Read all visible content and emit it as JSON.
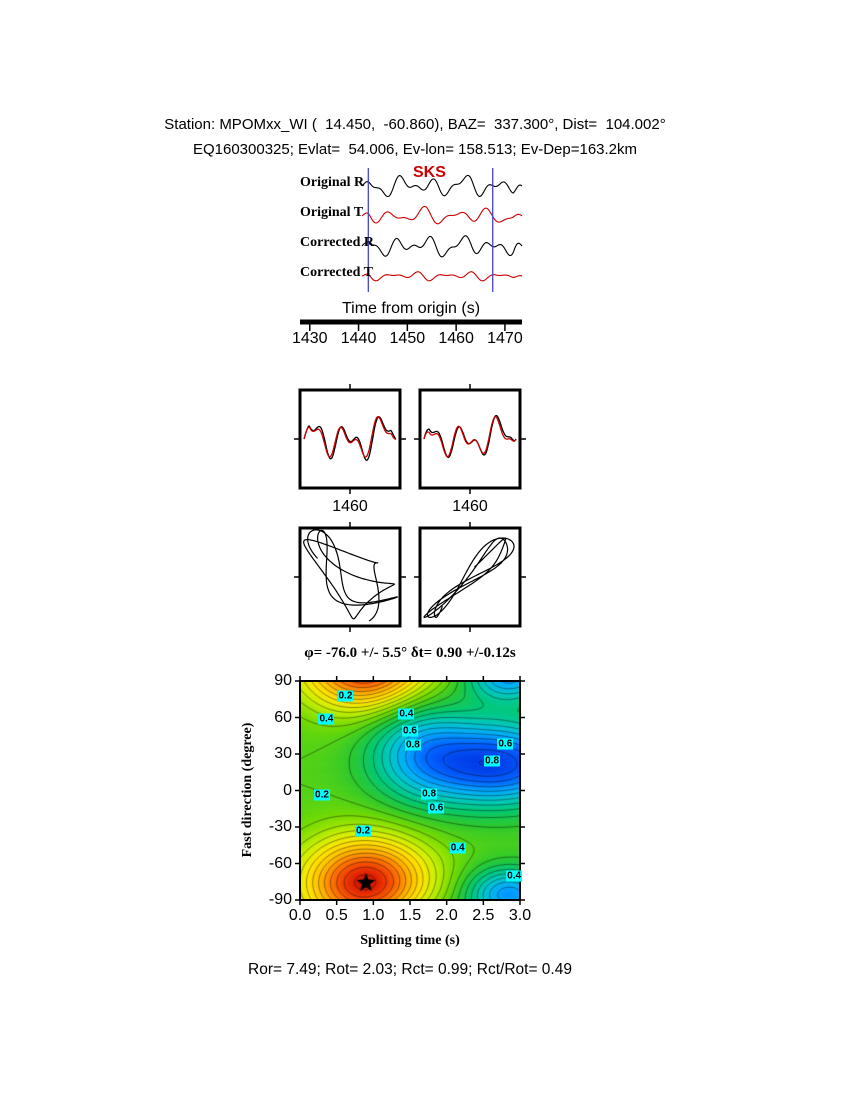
{
  "header": {
    "line1": "Station: MPOMxx_WI (  14.450,  -60.860), BAZ=  337.300°, Dist=  104.002°",
    "line2": "EQ160300325; Evlat=  54.006, Ev-lon= 158.513; Ev-Dep=163.2km"
  },
  "footer": {
    "text": "Ror= 7.49; Rot= 2.03; Rct= 0.99; Rct/Rot= 0.49"
  },
  "colors": {
    "radial_trace": "#000000",
    "transverse_trace": "#cc0000",
    "window_line": "#4444cc",
    "phase_label": "#cc0000",
    "contour_label_bg": "#00ffff",
    "star": "#000000"
  },
  "chart_data": [
    {
      "type": "line",
      "id": "waveform-traces",
      "xlabel": "Time from origin (s)",
      "xlim": [
        1428,
        1473.5
      ],
      "xticks": [
        "1430",
        "1440",
        "1450",
        "1460",
        "1470"
      ],
      "xtick_values": [
        1430,
        1440,
        1450,
        1460,
        1470
      ],
      "window_seconds": [
        1442,
        1467.5
      ],
      "phase_label": "SKS",
      "traces": [
        {
          "label": "Original R",
          "color": "#000000",
          "components": [
            [
              6,
              5,
              0.3
            ],
            [
              4,
              9,
              1.2
            ],
            [
              3,
              3,
              2.1
            ]
          ]
        },
        {
          "label": "Original T",
          "color": "#cc0000",
          "components": [
            [
              5,
              5,
              2.0
            ],
            [
              3,
              8,
              0.5
            ],
            [
              2,
              3,
              1.0
            ]
          ]
        },
        {
          "label": "Corrected R",
          "color": "#000000",
          "components": [
            [
              6,
              5,
              0.9
            ],
            [
              4,
              9,
              2.2
            ],
            [
              3,
              3,
              1.4
            ]
          ]
        },
        {
          "label": "Corrected T",
          "color": "#cc0000",
          "components": [
            [
              2.5,
              6,
              1.1
            ],
            [
              1.6,
              9,
              0.3
            ],
            [
              1.2,
              3,
              2.6
            ]
          ]
        }
      ]
    },
    {
      "type": "line",
      "id": "window-comparison",
      "panels": [
        {
          "xtick": "1460",
          "series": [
            {
              "name": "fast",
              "color": "#000000",
              "components": [
                [
                  14,
                  2.5,
                  0.5
                ],
                [
                  9,
                  5,
                  1.8
                ],
                [
                  6,
                  1.5,
                  0.0
                ]
              ]
            },
            {
              "name": "slow",
              "color": "#cc0000",
              "components": [
                [
                  13,
                  2.5,
                  0.78
                ],
                [
                  8,
                  5,
                  2.05
                ],
                [
                  6,
                  1.5,
                  0.22
                ]
              ]
            }
          ]
        },
        {
          "xtick": "1460",
          "series": [
            {
              "name": "fast",
              "color": "#000000",
              "components": [
                [
                  13,
                  2.5,
                  1.15
                ],
                [
                  8,
                  5,
                  2.5
                ],
                [
                  6,
                  1.5,
                  0.6
                ]
              ]
            },
            {
              "name": "slow",
              "color": "#cc0000",
              "components": [
                [
                  12,
                  2.5,
                  1.35
                ],
                [
                  8,
                  5,
                  2.7
                ],
                [
                  5,
                  1.5,
                  0.8
                ]
              ]
            }
          ]
        }
      ]
    },
    {
      "type": "particle-motion",
      "panels": [
        {
          "kind": "uncorrected-elliptical",
          "x_components": [
            [
              36,
              1.0,
              0.2
            ],
            [
              12,
              2.3,
              1.5
            ]
          ],
          "y_components": [
            [
              34,
              0.9,
              1.77
            ],
            [
              14,
              2.0,
              2.27
            ]
          ],
          "s_max": 18,
          "invert_y": false
        },
        {
          "kind": "corrected-linear",
          "x_components": [
            [
              40,
              1.0,
              0.0
            ],
            [
              6,
              2.2,
              0.8
            ]
          ],
          "y_components": [
            [
              38,
              1.0,
              0.18
            ],
            [
              6,
              2.0,
              0.5
            ]
          ],
          "s_max": 18,
          "invert_y": true
        }
      ]
    },
    {
      "type": "contour",
      "id": "misfit-surface",
      "title": "φ= -76.0 +/- 5.5° δt= 0.90 +/-0.12s",
      "xlabel": "Splitting time (s)",
      "ylabel": "Fast direction (degree)",
      "xlim": [
        0,
        3
      ],
      "ylim": [
        -90,
        90
      ],
      "xticks": [
        "0.0",
        "0.5",
        "1.0",
        "1.5",
        "2.0",
        "2.5",
        "3.0"
      ],
      "xtick_values": [
        0,
        0.5,
        1,
        1.5,
        2,
        2.5,
        3
      ],
      "yticks": [
        "90",
        "60",
        "30",
        "0",
        "-30",
        "-60",
        "-90"
      ],
      "ytick_values": [
        90,
        60,
        30,
        0,
        -30,
        -60,
        -90
      ],
      "best_fit": {
        "fast_direction_deg": -76.0,
        "fast_direction_err": 5.5,
        "delay_time_s": 0.9,
        "delay_time_err": 0.12
      },
      "star": {
        "x": 0.9,
        "y": -76
      },
      "contour_levels": {
        "min": 0.04,
        "max": 0.96,
        "step": 0.04
      },
      "contour_labels": [
        {
          "text": "0.2",
          "x": 0.62,
          "y": 78
        },
        {
          "text": "0.4",
          "x": 0.36,
          "y": 59
        },
        {
          "text": "0.4",
          "x": 1.45,
          "y": 63
        },
        {
          "text": "0.6",
          "x": 1.5,
          "y": 49
        },
        {
          "text": "0.8",
          "x": 1.54,
          "y": 37
        },
        {
          "text": "0.6",
          "x": 2.8,
          "y": 38
        },
        {
          "text": "0.8",
          "x": 2.62,
          "y": 24
        },
        {
          "text": "0.8",
          "x": 1.76,
          "y": -3
        },
        {
          "text": "0.6",
          "x": 1.86,
          "y": -14
        },
        {
          "text": "0.2",
          "x": 0.3,
          "y": -4
        },
        {
          "text": "0.2",
          "x": 0.86,
          "y": -33
        },
        {
          "text": "0.4",
          "x": 2.15,
          "y": -47
        },
        {
          "text": "0.4",
          "x": 2.92,
          "y": -70
        }
      ],
      "field_model": {
        "base": 0.52,
        "phi_period": 180,
        "terms": [
          {
            "amp": -0.5,
            "phi0": -76,
            "sigma_phi": 26,
            "x0": 0.9,
            "sigma_x": 0.6
          },
          {
            "amp": 0.42,
            "phi0": 22,
            "sigma_phi": 24,
            "x0": 2.7,
            "sigma_x": 0.75
          },
          {
            "amp": 0.2,
            "phi0": 35,
            "sigma_phi": 30,
            "x0": 1.6,
            "sigma_x": 0.5
          },
          {
            "amp": 0.3,
            "phi0": -85,
            "sigma_phi": 15,
            "x0": 2.85,
            "sigma_x": 0.4
          }
        ]
      },
      "colormap": [
        [
          0.0,
          "#c80000"
        ],
        [
          0.08,
          "#f03c00"
        ],
        [
          0.16,
          "#ff7d00"
        ],
        [
          0.24,
          "#ffbe00"
        ],
        [
          0.32,
          "#ffe600"
        ],
        [
          0.4,
          "#c8f000"
        ],
        [
          0.48,
          "#78dc00"
        ],
        [
          0.56,
          "#2dc82d"
        ],
        [
          0.64,
          "#00c878"
        ],
        [
          0.72,
          "#00c8c8"
        ],
        [
          0.8,
          "#00aaff"
        ],
        [
          0.88,
          "#0064ff"
        ],
        [
          1.0,
          "#0028dc"
        ]
      ]
    }
  ]
}
